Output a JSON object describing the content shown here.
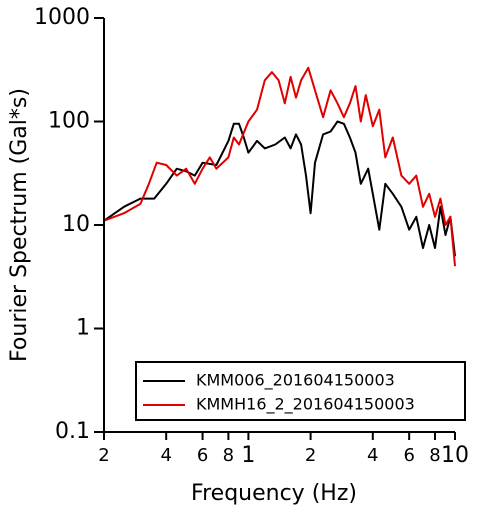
{
  "chart_data": {
    "type": "line",
    "xlabel": "Frequency (Hz)",
    "ylabel": "Fourier Spectrum (Gal*s)",
    "xscale": "log",
    "yscale": "log",
    "xlim": [
      0.2,
      10
    ],
    "ylim": [
      0.1,
      1000
    ],
    "xticks": [
      {
        "value": 0.2,
        "label": "2"
      },
      {
        "value": 0.4,
        "label": "4"
      },
      {
        "value": 0.6,
        "label": "6"
      },
      {
        "value": 0.8,
        "label": "8"
      },
      1,
      {
        "value": 2,
        "label": "2"
      },
      {
        "value": 4,
        "label": "4"
      },
      {
        "value": 6,
        "label": "6"
      },
      {
        "value": 8,
        "label": "8"
      },
      10
    ],
    "yticks": [
      0.1,
      1,
      10,
      100,
      1000
    ],
    "legend": "lower right",
    "series": [
      {
        "name": "KMM006_201604150003",
        "color": "#000000",
        "x": [
          0.2,
          0.25,
          0.3,
          0.35,
          0.4,
          0.45,
          0.5,
          0.55,
          0.6,
          0.7,
          0.8,
          0.85,
          0.9,
          0.95,
          1.0,
          1.1,
          1.2,
          1.35,
          1.5,
          1.6,
          1.7,
          1.8,
          1.9,
          2.0,
          2.1,
          2.3,
          2.5,
          2.7,
          2.9,
          3.1,
          3.3,
          3.5,
          3.8,
          4.0,
          4.3,
          4.6,
          5.0,
          5.5,
          6.0,
          6.5,
          7.0,
          7.5,
          8.0,
          8.5,
          9.0,
          9.5,
          10
        ],
        "values": [
          11,
          15,
          18,
          18,
          25,
          35,
          33,
          30,
          40,
          38,
          65,
          95,
          95,
          70,
          50,
          65,
          55,
          60,
          70,
          55,
          75,
          60,
          30,
          13,
          40,
          75,
          80,
          100,
          95,
          70,
          50,
          25,
          35,
          20,
          9,
          25,
          20,
          15,
          9,
          12,
          6,
          10,
          6,
          15,
          8,
          12,
          5
        ]
      },
      {
        "name": "KMMH16_2_201604150003",
        "color": "#e00000",
        "x": [
          0.2,
          0.25,
          0.3,
          0.33,
          0.36,
          0.4,
          0.45,
          0.5,
          0.55,
          0.6,
          0.65,
          0.7,
          0.8,
          0.85,
          0.9,
          1.0,
          1.1,
          1.2,
          1.3,
          1.4,
          1.5,
          1.6,
          1.7,
          1.8,
          1.95,
          2.1,
          2.3,
          2.5,
          2.7,
          2.9,
          3.1,
          3.3,
          3.5,
          3.7,
          4.0,
          4.3,
          4.6,
          5.0,
          5.5,
          6.0,
          6.5,
          7.0,
          7.5,
          8.0,
          8.5,
          9.0,
          9.5,
          10
        ],
        "values": [
          11,
          13,
          16,
          25,
          40,
          38,
          30,
          35,
          25,
          35,
          45,
          35,
          45,
          70,
          60,
          100,
          130,
          250,
          300,
          250,
          150,
          270,
          170,
          250,
          330,
          200,
          110,
          200,
          150,
          110,
          150,
          220,
          100,
          180,
          90,
          130,
          45,
          70,
          30,
          25,
          30,
          15,
          20,
          12,
          18,
          10,
          12,
          4
        ]
      }
    ]
  }
}
